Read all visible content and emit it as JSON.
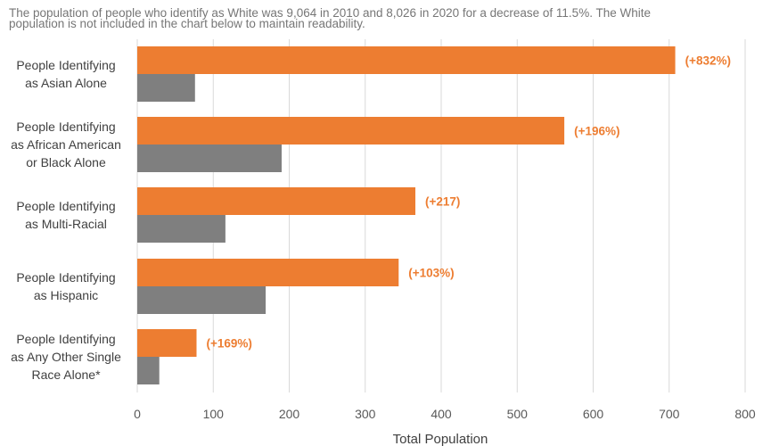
{
  "note": {
    "line1": "The population of people who identify as White was 9,064 in 2010 and 8,026 in 2020 for a decrease of 11.5%. The White",
    "line2": "population is not included in the chart below to maintain readability."
  },
  "chart_data": {
    "type": "bar",
    "orientation": "horizontal",
    "xlabel": "Total Population",
    "xlim": [
      0,
      800
    ],
    "xticks": [
      0,
      100,
      200,
      300,
      400,
      500,
      600,
      700,
      800
    ],
    "grid": true,
    "legend": "none",
    "categories": [
      [
        "People Identifying",
        "as Asian Alone"
      ],
      [
        "People Identifying",
        "as African American",
        "or Black Alone"
      ],
      [
        "People Identifying",
        "as Multi-Racial"
      ],
      [
        "People Identifying",
        "as Hispanic"
      ],
      [
        "People Identifying",
        "as Any Other Single",
        "Race Alone*"
      ]
    ],
    "series": [
      {
        "color": "#ED7D31",
        "values": [
          708,
          562,
          366,
          344,
          78
        ],
        "labels": [
          "(+832%)",
          "(+196%)",
          "(+217)",
          "(+103%)",
          "(+169%)"
        ]
      },
      {
        "color": "#7F7F7F",
        "values": [
          76,
          190,
          116,
          169,
          29
        ]
      }
    ]
  }
}
